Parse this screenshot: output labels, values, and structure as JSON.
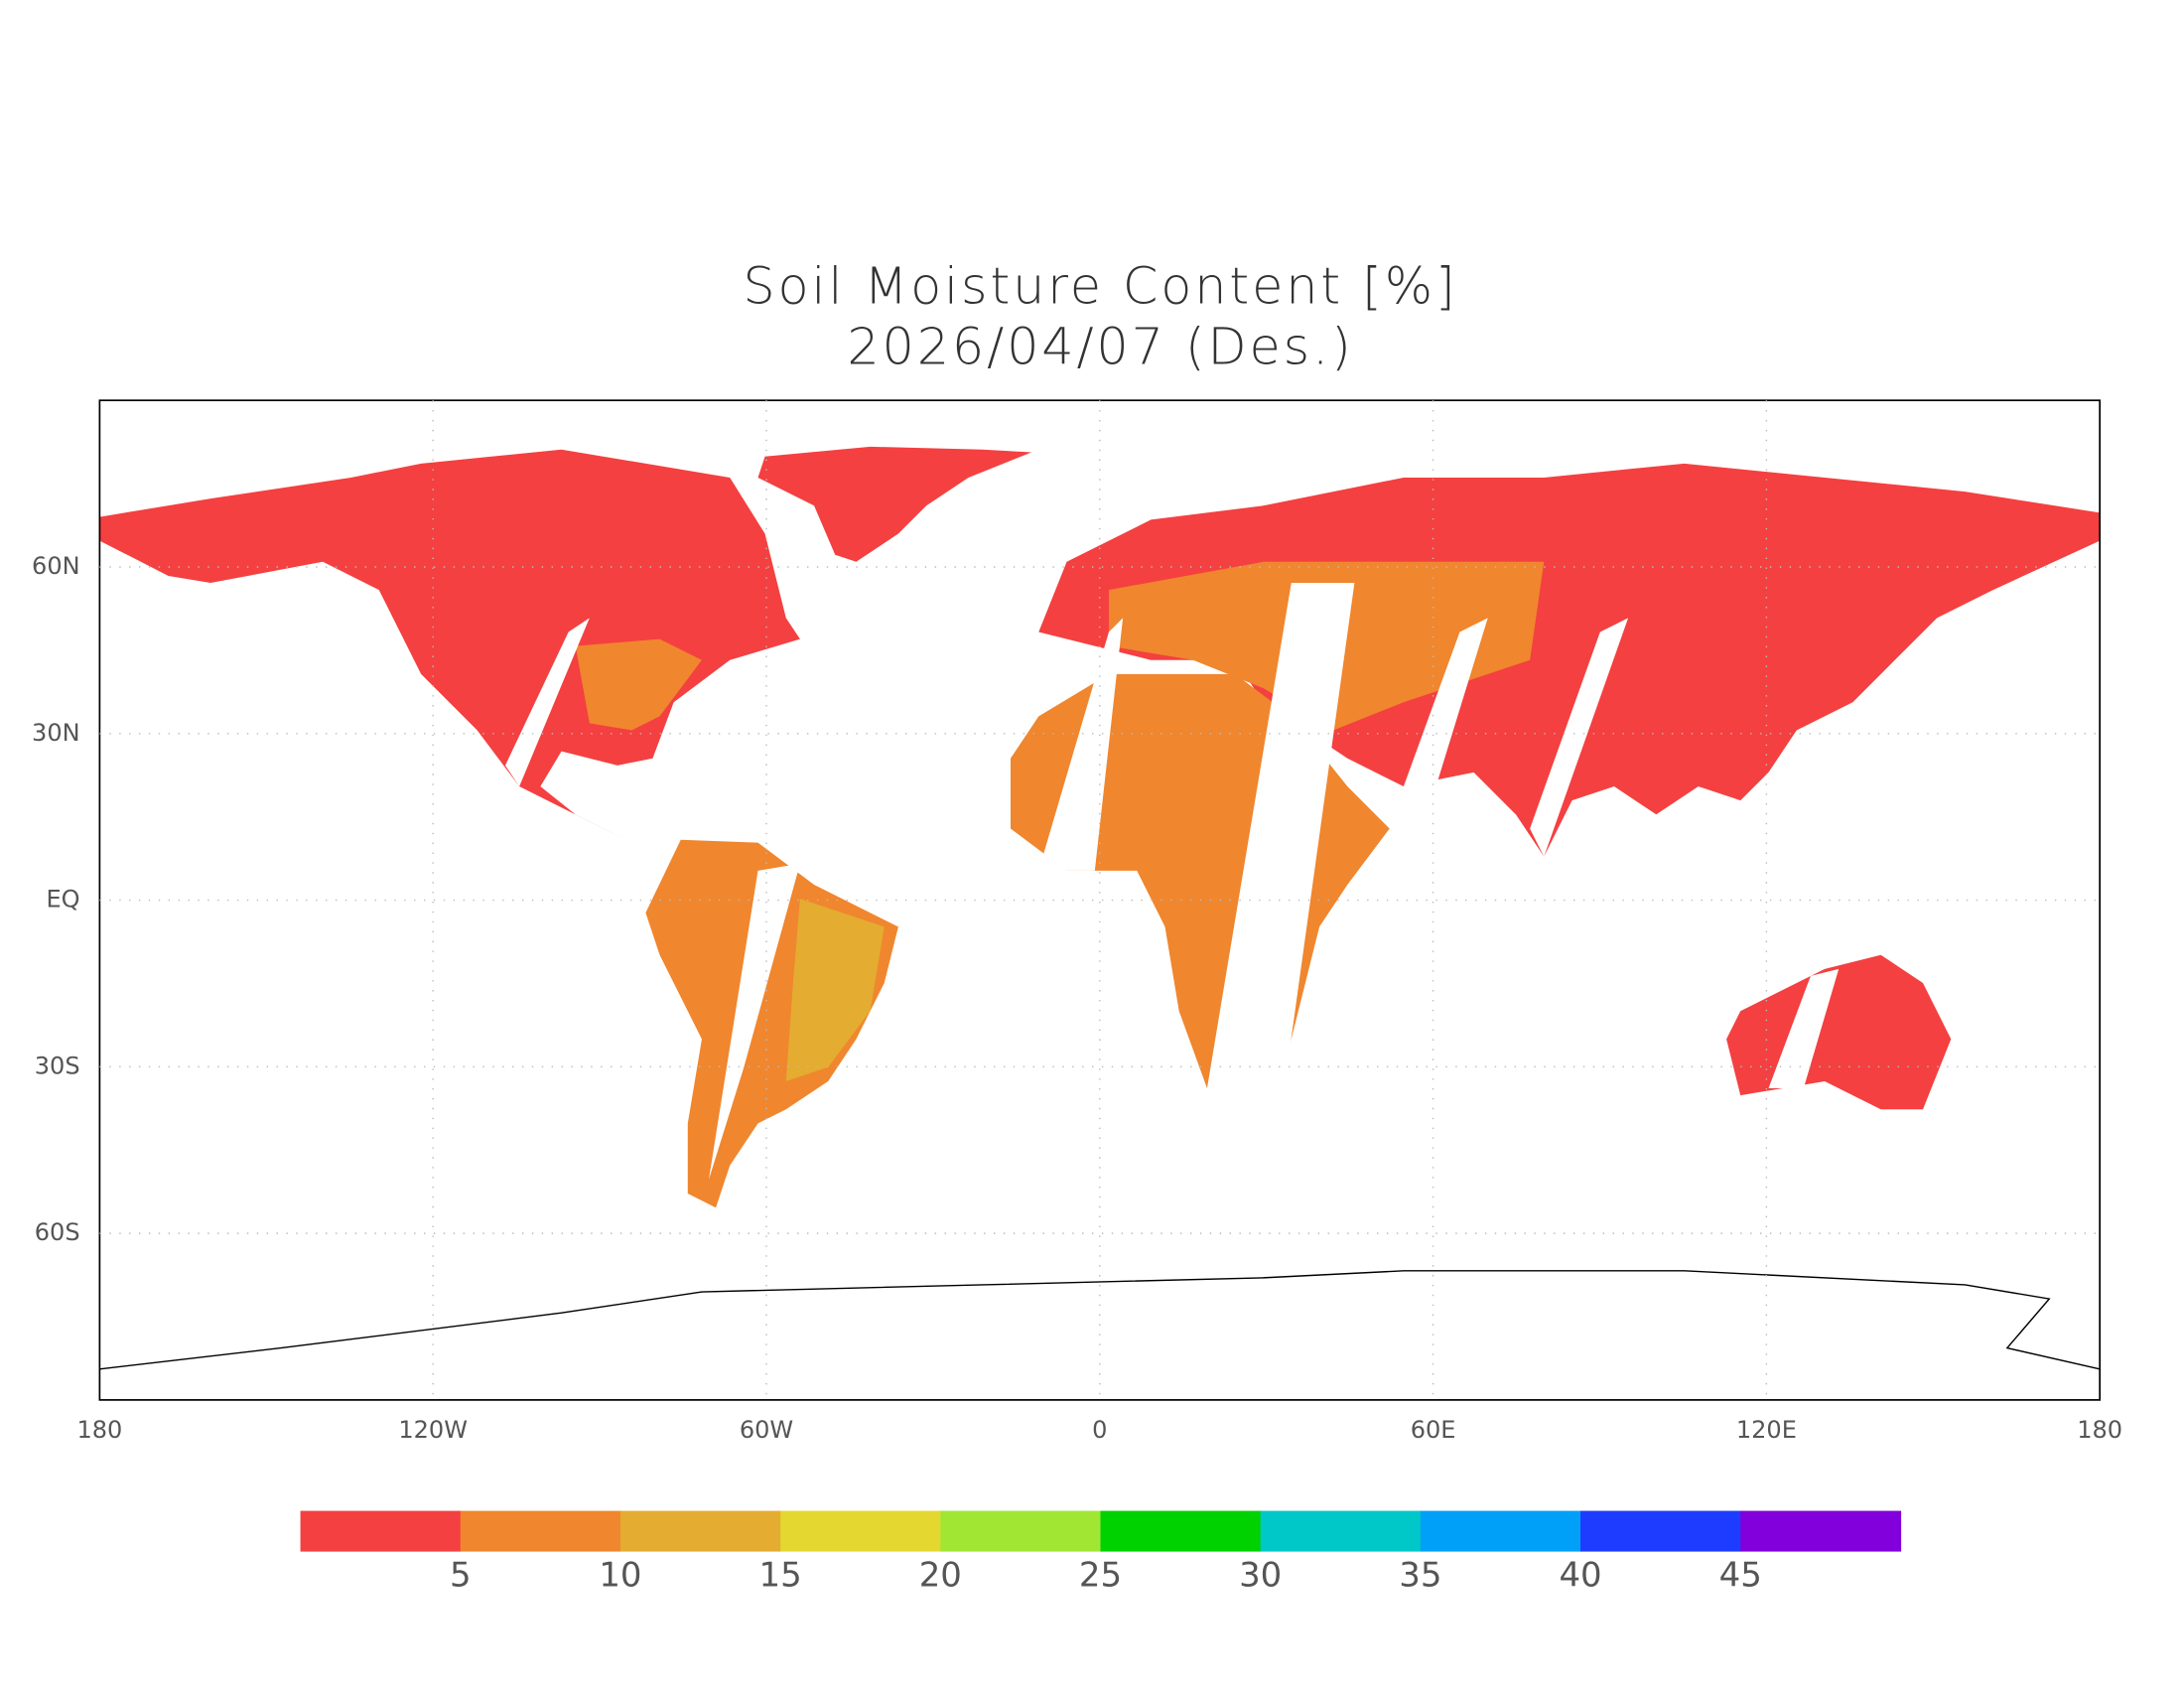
{
  "map": {
    "title": "Soil Moisture Content [%]",
    "subtitle": "2026/04/07 (Des.)",
    "xlim": [
      -180,
      180
    ],
    "xticks": [
      {
        "value": -180,
        "label": "180"
      },
      {
        "value": -120,
        "label": "120W"
      },
      {
        "value": -60,
        "label": "60W"
      },
      0,
      {
        "value": 60,
        "label": "60E"
      },
      {
        "value": 120,
        "label": "120E"
      },
      180
    ],
    "ylim": [
      -90,
      90
    ],
    "yticks": [
      {
        "value": 60,
        "label": "60N"
      },
      {
        "value": 30,
        "label": "30N"
      },
      {
        "value": 0,
        "label": "EQ"
      },
      {
        "value": -30,
        "label": "30S"
      },
      {
        "value": -60,
        "label": "60S"
      }
    ],
    "grid": true,
    "colorbar": {
      "colors": [
        "#f44040",
        "#f0862e",
        "#e4ac30",
        "#e4d830",
        "#a0e632",
        "#00d200",
        "#00c8c8",
        "#00a0f8",
        "#1e3cff",
        "#8200dc"
      ],
      "ticks": [
        5,
        10,
        15,
        20,
        25,
        30,
        35,
        40,
        45
      ]
    }
  }
}
